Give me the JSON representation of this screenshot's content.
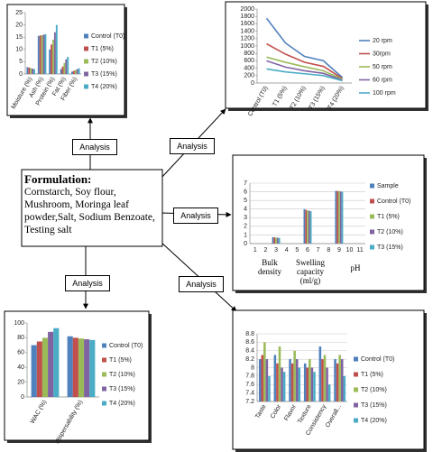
{
  "diagram": {
    "center_title": "Formulation:",
    "center_text": "Cornstarch, Soy flour, Mushroom, Moringa leaf powder,Salt, Sodium Benzoate, Testing salt",
    "edge_labels": [
      "Analysis",
      "Analysis",
      "Analysis",
      "Analysis",
      "Analysis"
    ]
  },
  "chart_data": [
    {
      "type": "bar",
      "categories": [
        "Moisture (%)",
        "Ash (%)",
        "Protein (%)",
        "Fat (%)",
        "Fiber (%)"
      ],
      "series": [
        {
          "name": "Control (T0)",
          "color": "#4f81bd",
          "values": [
            2.8,
            15.5,
            10,
            2,
            1
          ]
        },
        {
          "name": "T1 (5%)",
          "color": "#c0504d",
          "values": [
            2.6,
            15.7,
            12,
            3,
            1.3
          ]
        },
        {
          "name": "T2 (10%)",
          "color": "#9bbb59",
          "values": [
            2.4,
            15.8,
            14,
            4.5,
            1.6
          ]
        },
        {
          "name": "T3 (15%)",
          "color": "#8064a2",
          "values": [
            2.2,
            16,
            17,
            6,
            2
          ]
        },
        {
          "name": "T4 (20%)",
          "color": "#4bacc6",
          "values": [
            2,
            16.2,
            20,
            7,
            2.3
          ]
        }
      ],
      "ylim": [
        0,
        25
      ],
      "yticks": [
        0,
        5,
        10,
        15,
        20,
        25
      ],
      "grid": false
    },
    {
      "type": "line",
      "categories": [
        "Control (T0)",
        "T1 (5%)",
        "T2 (10%)",
        "T3 (15%)",
        "T4 (20%)"
      ],
      "series": [
        {
          "name": "20 rpm",
          "color": "#4f81bd",
          "values": [
            1750,
            1080,
            720,
            600,
            150
          ]
        },
        {
          "name": "30rpm",
          "color": "#c0504d",
          "values": [
            1060,
            780,
            560,
            450,
            120
          ]
        },
        {
          "name": "50 rpm",
          "color": "#9bbb59",
          "values": [
            700,
            560,
            440,
            330,
            100
          ]
        },
        {
          "name": "60 rpm",
          "color": "#8064a2",
          "values": [
            600,
            430,
            330,
            260,
            80
          ]
        },
        {
          "name": "100 rpm",
          "color": "#4bacc6",
          "values": [
            380,
            300,
            250,
            200,
            60
          ]
        }
      ],
      "ylim": [
        0,
        2000
      ],
      "yticks": [
        0,
        200,
        400,
        600,
        800,
        1000,
        1200,
        1400,
        1600,
        1800,
        2000
      ],
      "grid": false
    },
    {
      "type": "bar",
      "categories": [
        "1",
        "2",
        "3",
        "4",
        "5",
        "6",
        "7",
        "8",
        "9",
        "10",
        "11"
      ],
      "series": [
        {
          "name": "Sample",
          "color": "#4f81bd",
          "values": [
            null,
            null,
            0.75,
            null,
            null,
            4.0,
            null,
            null,
            6.1,
            null,
            null
          ]
        },
        {
          "name": "Control (T0)",
          "color": "#c0504d",
          "values": [
            null,
            null,
            0.72,
            null,
            null,
            3.9,
            null,
            null,
            6.1,
            null,
            null
          ]
        },
        {
          "name": "T1 (5%)",
          "color": "#9bbb59",
          "values": [
            null,
            null,
            0.7,
            null,
            null,
            3.85,
            null,
            null,
            6.08,
            null,
            null
          ]
        },
        {
          "name": "T2 (10%)",
          "color": "#8064a2",
          "values": [
            null,
            null,
            0.68,
            null,
            null,
            3.8,
            null,
            null,
            6.05,
            null,
            null
          ]
        },
        {
          "name": "T3 (15%)",
          "color": "#4bacc6",
          "values": [
            null,
            null,
            0.66,
            null,
            null,
            3.75,
            null,
            null,
            6.0,
            null,
            null
          ]
        }
      ],
      "ylim": [
        0,
        7
      ],
      "yticks": [
        0,
        1,
        2,
        3,
        4,
        5,
        6,
        7
      ],
      "grid": true,
      "annotations": [
        "Bulk density",
        "Swelling capacity (ml/g)",
        "pH"
      ]
    },
    {
      "type": "bar",
      "categories": [
        "WAC (%)",
        "Dispersability (%)"
      ],
      "series": [
        {
          "name": "Control (T0)",
          "color": "#4f81bd",
          "values": [
            70,
            82
          ]
        },
        {
          "name": "T1 (5%)",
          "color": "#c0504d",
          "values": [
            75,
            80
          ]
        },
        {
          "name": "T2 (10%)",
          "color": "#9bbb59",
          "values": [
            80,
            79
          ]
        },
        {
          "name": "T3 (15%)",
          "color": "#8064a2",
          "values": [
            88,
            78
          ]
        },
        {
          "name": "T4 (20%)",
          "color": "#4bacc6",
          "values": [
            93,
            77
          ]
        }
      ],
      "ylim": [
        0,
        100
      ],
      "yticks": [
        0,
        20,
        40,
        60,
        80,
        100
      ],
      "grid": false
    },
    {
      "type": "bar",
      "categories": [
        "Taste",
        "Color",
        "Flavor",
        "Texture",
        "Consistency",
        "Overall..."
      ],
      "series": [
        {
          "name": "Control (T0)",
          "color": "#4f81bd",
          "values": [
            8.2,
            8.3,
            8.2,
            8.1,
            8.5,
            8.2
          ]
        },
        {
          "name": "T1 (5%)",
          "color": "#c0504d",
          "values": [
            8.3,
            8.1,
            8.1,
            8.0,
            8.2,
            8.1
          ]
        },
        {
          "name": "T2 (10%)",
          "color": "#9bbb59",
          "values": [
            8.6,
            8.5,
            8.4,
            8.2,
            8.3,
            8.3
          ]
        },
        {
          "name": "T3 (15%)",
          "color": "#8064a2",
          "values": [
            8.2,
            8.0,
            8.2,
            8.0,
            8.0,
            8.2
          ]
        },
        {
          "name": "T4 (20%)",
          "color": "#4bacc6",
          "values": [
            7.8,
            7.9,
            8.0,
            7.9,
            7.6,
            7.8
          ]
        }
      ],
      "ylim": [
        7.2,
        8.8
      ],
      "yticks": [
        7.2,
        7.4,
        7.6,
        7.8,
        8,
        8.2,
        8.4,
        8.6,
        8.8
      ],
      "grid": true
    }
  ]
}
